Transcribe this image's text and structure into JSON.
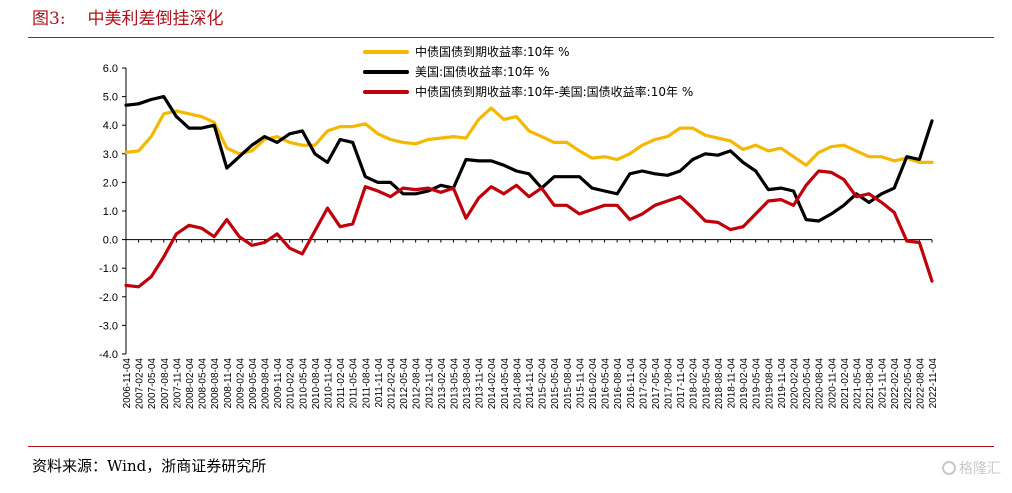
{
  "figure": {
    "number": "图3:",
    "title": "中美利差倒挂深化",
    "source": "资料来源：Wind，浙商证券研究所",
    "watermark": "格隆汇"
  },
  "chart_data": {
    "type": "line",
    "title": "",
    "xlabel": "",
    "ylabel": "",
    "ylim": [
      -4.0,
      6.0
    ],
    "yticks": [
      "6.0",
      "5.0",
      "4.0",
      "3.0",
      "2.0",
      "1.0",
      "0.0",
      "-1.0",
      "-2.0",
      "-3.0",
      "-4.0"
    ],
    "xticks": [
      "2006-11-04",
      "2007-02-04",
      "2007-05-04",
      "2007-08-04",
      "2007-11-04",
      "2008-02-04",
      "2008-05-04",
      "2008-08-04",
      "2008-11-04",
      "2009-02-04",
      "2009-05-04",
      "2009-08-04",
      "2009-11-04",
      "2010-02-04",
      "2010-05-04",
      "2010-08-04",
      "2010-11-04",
      "2011-02-04",
      "2011-05-04",
      "2011-08-04",
      "2011-11-04",
      "2012-02-04",
      "2012-05-04",
      "2012-08-04",
      "2012-11-04",
      "2013-02-04",
      "2013-05-04",
      "2013-08-04",
      "2013-11-04",
      "2014-02-04",
      "2014-05-04",
      "2014-08-04",
      "2014-11-04",
      "2015-02-04",
      "2015-05-04",
      "2015-08-04",
      "2015-11-04",
      "2016-02-04",
      "2016-05-04",
      "2016-08-04",
      "2016-11-04",
      "2017-02-04",
      "2017-05-04",
      "2017-08-04",
      "2017-11-04",
      "2018-02-04",
      "2018-05-04",
      "2018-08-04",
      "2018-11-04",
      "2019-02-04",
      "2019-05-04",
      "2019-08-04",
      "2019-11-04",
      "2020-02-04",
      "2020-05-04",
      "2020-08-04",
      "2020-11-04",
      "2021-02-04",
      "2021-05-04",
      "2021-08-04",
      "2021-11-04",
      "2022-02-04",
      "2022-05-04",
      "2022-08-04",
      "2022-11-04"
    ],
    "grid": false,
    "legend_position": "top",
    "x": [
      "2006-11",
      "2007-02",
      "2007-05",
      "2007-08",
      "2007-11",
      "2008-02",
      "2008-05",
      "2008-08",
      "2008-11",
      "2009-02",
      "2009-05",
      "2009-08",
      "2009-11",
      "2010-02",
      "2010-05",
      "2010-08",
      "2010-11",
      "2011-02",
      "2011-05",
      "2011-08",
      "2011-11",
      "2012-02",
      "2012-05",
      "2012-08",
      "2012-11",
      "2013-02",
      "2013-05",
      "2013-08",
      "2013-11",
      "2014-02",
      "2014-05",
      "2014-08",
      "2014-11",
      "2015-02",
      "2015-05",
      "2015-08",
      "2015-11",
      "2016-02",
      "2016-05",
      "2016-08",
      "2016-11",
      "2017-02",
      "2017-05",
      "2017-08",
      "2017-11",
      "2018-02",
      "2018-05",
      "2018-08",
      "2018-11",
      "2019-02",
      "2019-05",
      "2019-08",
      "2019-11",
      "2020-02",
      "2020-05",
      "2020-08",
      "2020-11",
      "2021-02",
      "2021-05",
      "2021-08",
      "2021-11",
      "2022-02",
      "2022-05",
      "2022-08",
      "2022-11"
    ],
    "series": [
      {
        "name": "中债国债到期收益率:10年 %",
        "color": "#f5b800",
        "values": [
          3.05,
          3.1,
          3.6,
          4.4,
          4.5,
          4.4,
          4.3,
          4.1,
          3.2,
          3.0,
          3.1,
          3.5,
          3.6,
          3.4,
          3.3,
          3.3,
          3.8,
          3.95,
          3.95,
          4.05,
          3.7,
          3.5,
          3.4,
          3.35,
          3.5,
          3.55,
          3.6,
          3.55,
          4.2,
          4.6,
          4.2,
          4.3,
          3.8,
          3.6,
          3.4,
          3.4,
          3.1,
          2.85,
          2.9,
          2.8,
          3.0,
          3.3,
          3.5,
          3.6,
          3.9,
          3.9,
          3.65,
          3.55,
          3.45,
          3.15,
          3.3,
          3.1,
          3.2,
          2.9,
          2.6,
          3.05,
          3.25,
          3.3,
          3.1,
          2.9,
          2.9,
          2.75,
          2.85,
          2.7,
          2.7
        ]
      },
      {
        "name": "美国:国债收益率:10年 %",
        "color": "#000000",
        "values": [
          4.7,
          4.75,
          4.9,
          5.0,
          4.3,
          3.9,
          3.9,
          4.0,
          2.5,
          2.9,
          3.3,
          3.6,
          3.4,
          3.7,
          3.8,
          3.0,
          2.7,
          3.5,
          3.4,
          2.2,
          2.0,
          2.0,
          1.6,
          1.6,
          1.7,
          1.9,
          1.8,
          2.8,
          2.75,
          2.75,
          2.6,
          2.4,
          2.3,
          1.8,
          2.2,
          2.2,
          2.2,
          1.8,
          1.7,
          1.6,
          2.3,
          2.4,
          2.3,
          2.25,
          2.4,
          2.8,
          3.0,
          2.95,
          3.1,
          2.7,
          2.4,
          1.75,
          1.8,
          1.7,
          0.7,
          0.65,
          0.9,
          1.2,
          1.6,
          1.3,
          1.6,
          1.8,
          2.9,
          2.8,
          4.15
        ]
      },
      {
        "name": "中债国债到期收益率:10年-美国:国债收益率:10年 %",
        "color": "#c0000b",
        "values": [
          -1.6,
          -1.65,
          -1.3,
          -0.6,
          0.2,
          0.5,
          0.4,
          0.1,
          0.7,
          0.1,
          -0.2,
          -0.1,
          0.2,
          -0.3,
          -0.5,
          0.3,
          1.1,
          0.45,
          0.55,
          1.85,
          1.7,
          1.5,
          1.8,
          1.75,
          1.8,
          1.65,
          1.8,
          0.75,
          1.45,
          1.85,
          1.6,
          1.9,
          1.5,
          1.8,
          1.2,
          1.2,
          0.9,
          1.05,
          1.2,
          1.2,
          0.7,
          0.9,
          1.2,
          1.35,
          1.5,
          1.1,
          0.65,
          0.6,
          0.35,
          0.45,
          0.9,
          1.35,
          1.4,
          1.2,
          1.9,
          2.4,
          2.35,
          2.1,
          1.5,
          1.6,
          1.3,
          0.95,
          -0.05,
          -0.1,
          -1.45
        ]
      }
    ]
  }
}
